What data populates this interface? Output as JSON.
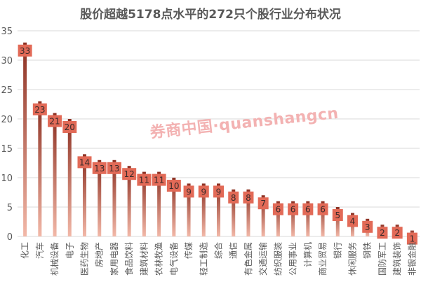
{
  "chart_data": {
    "type": "bar",
    "title": "股价超越5178点水平的272只个股行业分布状况",
    "xlabel": "",
    "ylabel": "",
    "ylim": [
      0,
      35
    ],
    "yticks": [
      0,
      5,
      10,
      15,
      20,
      25,
      30,
      35
    ],
    "grid": true,
    "legend": "none",
    "categories": [
      "化工",
      "汽车",
      "机械设备",
      "电子",
      "医药生物",
      "房地产",
      "家用电器",
      "食品饮料",
      "建筑材料",
      "农林牧渔",
      "电气设备",
      "传媒",
      "轻工制造",
      "综合",
      "通信",
      "有色金属",
      "交通运输",
      "纺织服装",
      "公用事业",
      "计算机",
      "商业贸易",
      "银行",
      "休闲服务",
      "钢铁",
      "国防军工",
      "建筑装饰",
      "非银金融"
    ],
    "values": [
      33,
      23,
      21,
      20,
      14,
      13,
      13,
      12,
      11,
      11,
      10,
      9,
      9,
      9,
      8,
      8,
      7,
      6,
      6,
      6,
      6,
      5,
      4,
      3,
      2,
      2,
      1
    ],
    "colors": {
      "bar_dark": "#8c2f21",
      "bar_light": "#f2b8a8",
      "label_bg": "#e26a57",
      "label_text": "#3a2a2a",
      "axis_text": "#595959",
      "grid": "#d9d9d9"
    }
  },
  "watermark": "券商中国·quanshangcn"
}
